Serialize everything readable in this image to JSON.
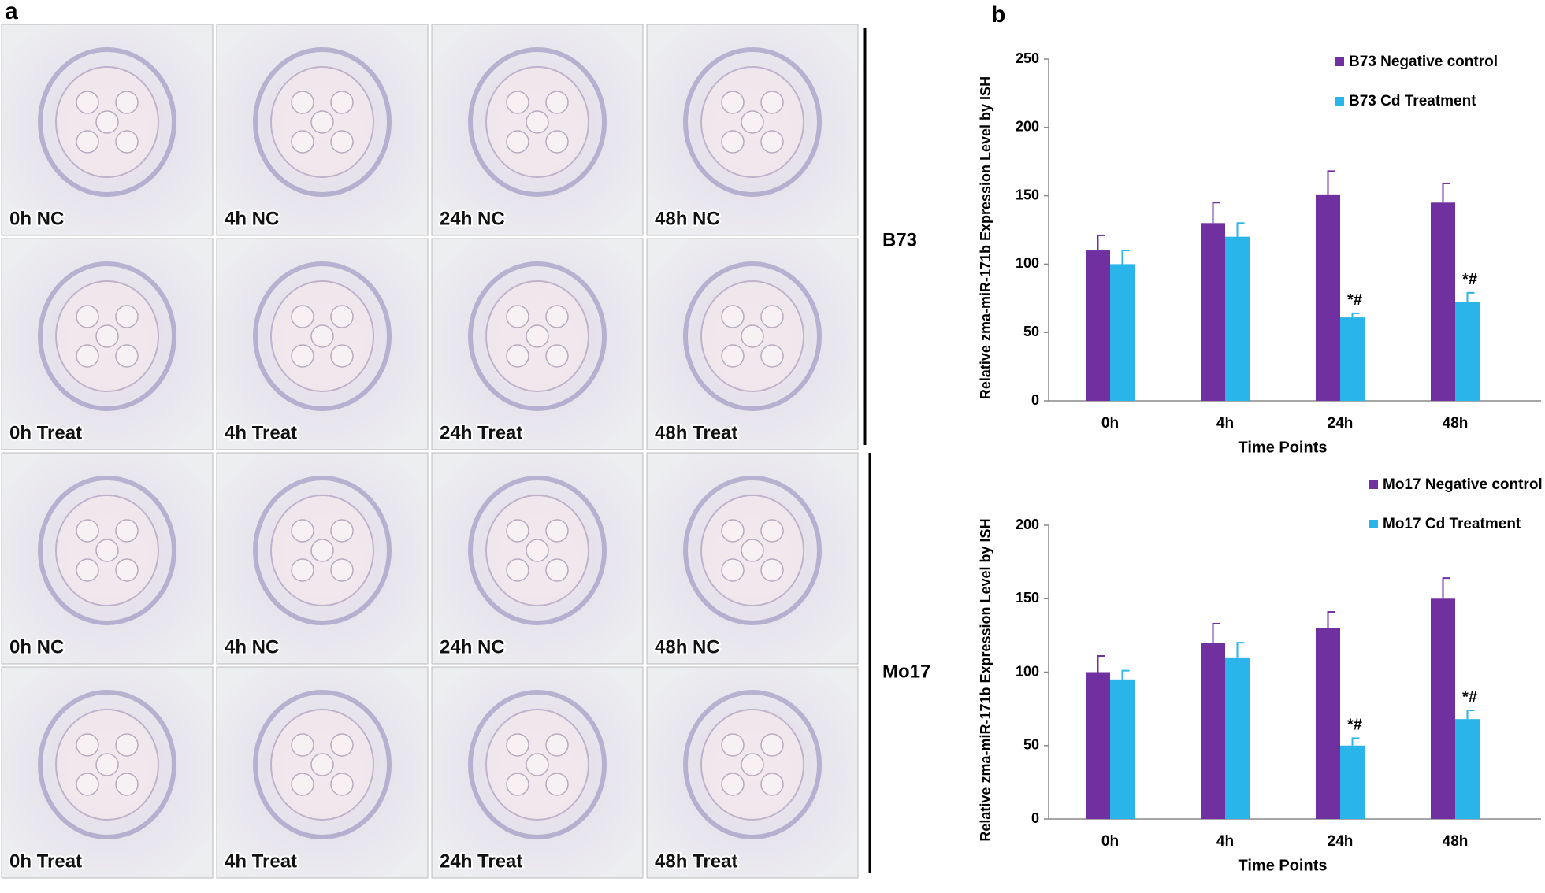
{
  "panel_labels": [
    "a",
    "b"
  ],
  "panel_a": {
    "groups": [
      "B73",
      "Mo17"
    ],
    "images": [
      [
        "0h NC",
        "4h NC",
        "24h NC",
        "48h NC"
      ],
      [
        "0h Treat",
        "4h Treat",
        "24h Treat",
        "48h Treat"
      ],
      [
        "0h NC",
        "4h NC",
        "24h NC",
        "48h NC"
      ],
      [
        "0h Treat",
        "4h Treat",
        "24h Treat",
        "48h Treat"
      ]
    ]
  },
  "chart_data": [
    {
      "type": "bar",
      "y_label": "Relative zma-miR-171b Expression Level by ISH",
      "x_label": "Time Points",
      "categories": [
        "0h",
        "4h",
        "24h",
        "48h"
      ],
      "series": [
        {
          "name": "B73 Negative control",
          "color": "#7030a0",
          "values": [
            110,
            130,
            151,
            145
          ],
          "errors": [
            11,
            15,
            17,
            14
          ],
          "annotations": [
            null,
            null,
            null,
            null
          ]
        },
        {
          "name": "B73 Cd Treatment",
          "color": "#29b5ea",
          "values": [
            100,
            120,
            61,
            72
          ],
          "errors": [
            10,
            10,
            3,
            7
          ],
          "annotations": [
            null,
            null,
            "*#",
            "*#"
          ]
        }
      ],
      "ylim": [
        0,
        250
      ],
      "yticks": [
        0,
        50,
        100,
        150,
        200,
        250
      ],
      "grid": false,
      "legend": "upper right"
    },
    {
      "type": "bar",
      "y_label": "Relative zma-miR-171b Expression Level by ISH",
      "x_label": "Time Points",
      "categories": [
        "0h",
        "4h",
        "24h",
        "48h"
      ],
      "series": [
        {
          "name": "Mo17 Negative control",
          "color": "#7030a0",
          "values": [
            100,
            120,
            130,
            150
          ],
          "errors": [
            11,
            13,
            11,
            14
          ],
          "annotations": [
            null,
            null,
            null,
            null
          ]
        },
        {
          "name": "Mo17 Cd Treatment",
          "color": "#29b5ea",
          "values": [
            95,
            110,
            50,
            68
          ],
          "errors": [
            6,
            10,
            5,
            6
          ],
          "annotations": [
            null,
            null,
            "*#",
            "*#"
          ]
        }
      ],
      "ylim": [
        0,
        200
      ],
      "yticks": [
        0,
        50,
        100,
        150,
        200
      ],
      "grid": false,
      "legend": "upper right"
    }
  ]
}
